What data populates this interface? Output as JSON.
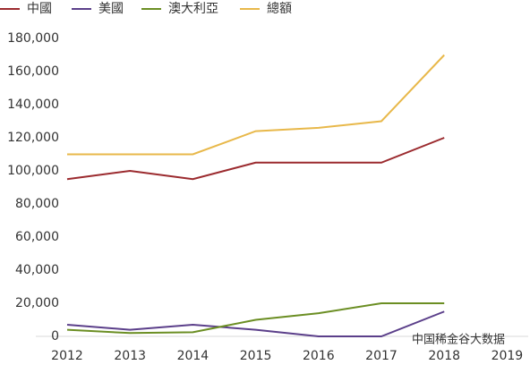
{
  "chart_data": {
    "type": "line",
    "x": [
      "2012",
      "2013",
      "2014",
      "2015",
      "2016",
      "2017",
      "2018",
      "2019"
    ],
    "series": [
      {
        "name": "中國",
        "color": "#9b2a2e",
        "values": [
          95000,
          100000,
          95000,
          105000,
          105000,
          105000,
          120000,
          null
        ]
      },
      {
        "name": "美國",
        "color": "#5b3f8a",
        "values": [
          7000,
          4000,
          7000,
          4000,
          0,
          0,
          15000,
          null
        ]
      },
      {
        "name": "澳大利亞",
        "color": "#6b8e23",
        "values": [
          4000,
          2000,
          2500,
          10000,
          14000,
          20000,
          20000,
          null
        ]
      },
      {
        "name": "總額",
        "color": "#e8b84a",
        "values": [
          110000,
          110000,
          110000,
          124000,
          126000,
          130000,
          170000,
          null
        ]
      }
    ],
    "ylim": [
      0,
      180000
    ],
    "yticks": [
      0,
      {
        "value": 20000,
        "label": "20,000"
      },
      {
        "value": 40000,
        "label": "40,000"
      },
      {
        "value": 60000,
        "label": "60,000"
      },
      {
        "value": 80000,
        "label": "80,000"
      },
      {
        "value": 100000,
        "label": "100,000"
      },
      {
        "value": 120000,
        "label": "120,000"
      },
      {
        "value": 140000,
        "label": "140,000"
      },
      {
        "value": 160000,
        "label": "160,000"
      },
      {
        "value": 180000,
        "label": "180,000"
      }
    ],
    "legend": "top-left",
    "watermark": "中国稀金谷大数据"
  }
}
